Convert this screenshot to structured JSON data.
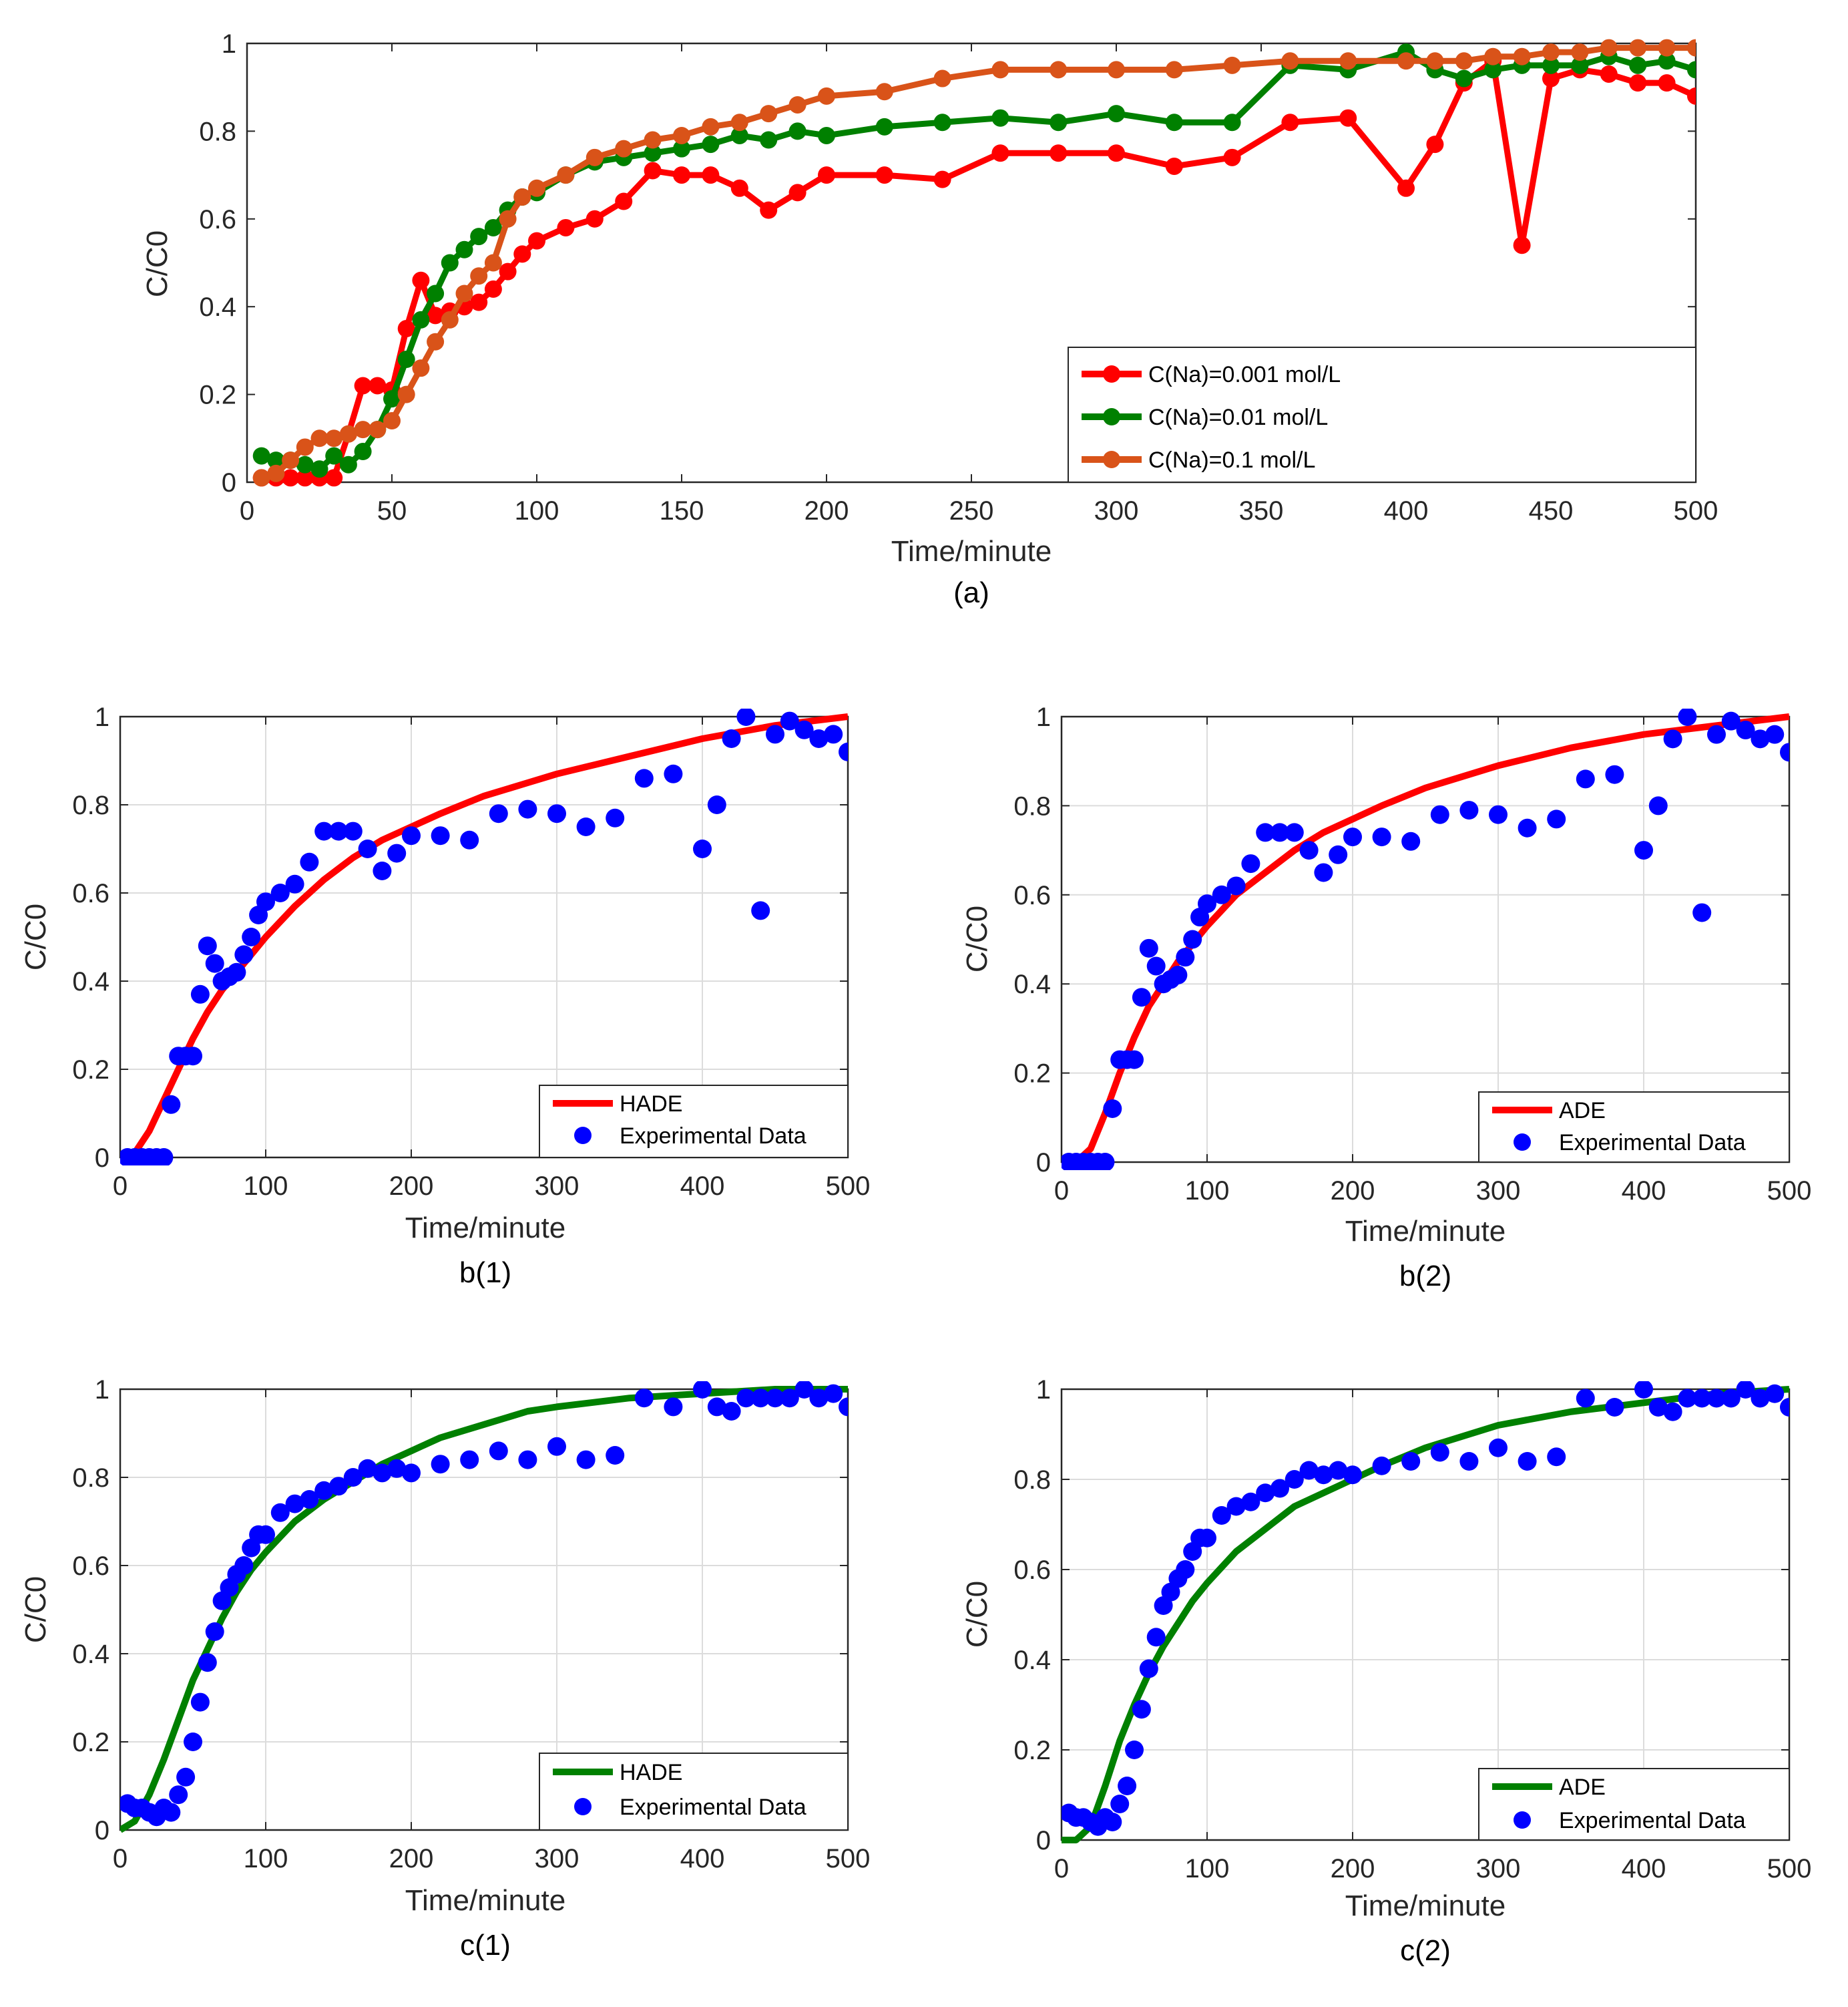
{
  "colors": {
    "red": "#ff0000",
    "green": "#008000",
    "orange": "#d95319",
    "blue": "#0000ff",
    "axis": "#262626",
    "grid": "#dcdcdc"
  },
  "chart_data": [
    {
      "id": "a",
      "type": "line",
      "caption": "(a)",
      "xlabel": "Time/minute",
      "ylabel": "C/C0",
      "xlim": [
        0,
        500
      ],
      "ylim": [
        0,
        1
      ],
      "xticks": [
        0,
        50,
        100,
        150,
        200,
        250,
        300,
        350,
        400,
        450,
        500
      ],
      "yticks": [
        0,
        0.2,
        0.4,
        0.6,
        0.8,
        1
      ],
      "ytick_labels": [
        "0",
        "0.2",
        "0.4",
        "0.6",
        "0.8",
        "1"
      ],
      "grid": false,
      "legend_position": "bottom-right",
      "series": [
        {
          "name": "C(Na)=0.001 mol/L",
          "color": "#ff0000",
          "marker": "circle",
          "x": [
            5,
            10,
            15,
            20,
            25,
            30,
            35,
            40,
            45,
            50,
            55,
            60,
            65,
            70,
            75,
            80,
            85,
            90,
            95,
            100,
            110,
            120,
            130,
            140,
            150,
            160,
            170,
            180,
            190,
            200,
            220,
            240,
            260,
            280,
            300,
            320,
            340,
            360,
            380,
            400,
            410,
            420,
            430,
            440,
            450,
            460,
            470,
            480,
            490,
            500
          ],
          "y": [
            0.01,
            0.01,
            0.01,
            0.01,
            0.01,
            0.01,
            0.11,
            0.22,
            0.22,
            0.21,
            0.35,
            0.46,
            0.38,
            0.39,
            0.4,
            0.41,
            0.44,
            0.48,
            0.52,
            0.55,
            0.58,
            0.6,
            0.64,
            0.71,
            0.7,
            0.7,
            0.67,
            0.62,
            0.66,
            0.7,
            0.7,
            0.69,
            0.75,
            0.75,
            0.75,
            0.72,
            0.74,
            0.82,
            0.83,
            0.67,
            0.77,
            0.91,
            0.96,
            0.54,
            0.92,
            0.94,
            0.93,
            0.91,
            0.91,
            0.88
          ]
        },
        {
          "name": "C(Na)=0.01 mol/L",
          "color": "#008000",
          "marker": "circle",
          "x": [
            5,
            10,
            15,
            20,
            25,
            30,
            35,
            40,
            45,
            50,
            55,
            60,
            65,
            70,
            75,
            80,
            85,
            90,
            95,
            100,
            110,
            120,
            130,
            140,
            150,
            160,
            170,
            180,
            190,
            200,
            220,
            240,
            260,
            280,
            300,
            320,
            340,
            360,
            380,
            400,
            410,
            420,
            430,
            440,
            450,
            460,
            470,
            480,
            490,
            500
          ],
          "y": [
            0.06,
            0.05,
            0.05,
            0.04,
            0.03,
            0.06,
            0.04,
            0.07,
            0.12,
            0.19,
            0.28,
            0.37,
            0.43,
            0.5,
            0.53,
            0.56,
            0.58,
            0.62,
            0.65,
            0.66,
            0.7,
            0.73,
            0.74,
            0.75,
            0.76,
            0.77,
            0.79,
            0.78,
            0.8,
            0.79,
            0.81,
            0.82,
            0.83,
            0.82,
            0.84,
            0.82,
            0.82,
            0.95,
            0.94,
            0.98,
            0.94,
            0.92,
            0.94,
            0.95,
            0.95,
            0.95,
            0.97,
            0.95,
            0.96,
            0.94
          ]
        },
        {
          "name": "C(Na)=0.1 mol/L",
          "color": "#d95319",
          "marker": "circle",
          "x": [
            5,
            10,
            15,
            20,
            25,
            30,
            35,
            40,
            45,
            50,
            55,
            60,
            65,
            70,
            75,
            80,
            85,
            90,
            95,
            100,
            110,
            120,
            130,
            140,
            150,
            160,
            170,
            180,
            190,
            200,
            220,
            240,
            260,
            280,
            300,
            320,
            340,
            360,
            380,
            400,
            410,
            420,
            430,
            440,
            450,
            460,
            470,
            480,
            490,
            500
          ],
          "y": [
            0.01,
            0.02,
            0.05,
            0.08,
            0.1,
            0.1,
            0.11,
            0.12,
            0.12,
            0.14,
            0.2,
            0.26,
            0.32,
            0.37,
            0.43,
            0.47,
            0.5,
            0.6,
            0.65,
            0.67,
            0.7,
            0.74,
            0.76,
            0.78,
            0.79,
            0.81,
            0.82,
            0.84,
            0.86,
            0.88,
            0.89,
            0.92,
            0.94,
            0.94,
            0.94,
            0.94,
            0.95,
            0.96,
            0.96,
            0.96,
            0.96,
            0.96,
            0.97,
            0.97,
            0.98,
            0.98,
            0.99,
            0.99,
            0.99,
            0.99
          ]
        }
      ]
    },
    {
      "id": "b1",
      "type": "scatter",
      "caption": "b(1)",
      "xlabel": "Time/minute",
      "ylabel": "C/C0",
      "xlim": [
        0,
        500
      ],
      "ylim": [
        0,
        1
      ],
      "xticks": [
        0,
        100,
        200,
        300,
        400,
        500
      ],
      "yticks": [
        0,
        0.2,
        0.4,
        0.6,
        0.8,
        1
      ],
      "ytick_labels": [
        "0",
        "0.2",
        "0.4",
        "0.6",
        "0.8",
        "1"
      ],
      "grid": true,
      "legend_position": "bottom-right",
      "model": {
        "name": "HADE",
        "color": "#ff0000",
        "x": [
          0,
          10,
          20,
          30,
          40,
          50,
          60,
          70,
          80,
          90,
          100,
          120,
          140,
          160,
          180,
          200,
          220,
          250,
          280,
          300,
          350,
          400,
          450,
          500
        ],
        "y": [
          0,
          0.01,
          0.06,
          0.13,
          0.2,
          0.27,
          0.33,
          0.38,
          0.42,
          0.46,
          0.5,
          0.57,
          0.63,
          0.68,
          0.72,
          0.75,
          0.78,
          0.82,
          0.85,
          0.87,
          0.91,
          0.95,
          0.98,
          1.0
        ]
      },
      "experimental": {
        "name": "Experimental Data",
        "color": "#0000ff",
        "x": [
          5,
          10,
          15,
          20,
          25,
          30,
          35,
          40,
          45,
          50,
          55,
          60,
          65,
          70,
          75,
          80,
          85,
          90,
          95,
          100,
          110,
          120,
          130,
          140,
          150,
          160,
          170,
          180,
          190,
          200,
          220,
          240,
          260,
          280,
          300,
          320,
          340,
          360,
          380,
          400,
          410,
          420,
          430,
          440,
          450,
          460,
          470,
          480,
          490,
          500
        ],
        "y": [
          0.0,
          0.0,
          0.0,
          0.0,
          0.0,
          0.0,
          0.12,
          0.23,
          0.23,
          0.23,
          0.37,
          0.48,
          0.44,
          0.4,
          0.41,
          0.42,
          0.46,
          0.5,
          0.55,
          0.58,
          0.6,
          0.62,
          0.67,
          0.74,
          0.74,
          0.74,
          0.7,
          0.65,
          0.69,
          0.73,
          0.73,
          0.72,
          0.78,
          0.79,
          0.78,
          0.75,
          0.77,
          0.86,
          0.87,
          0.7,
          0.8,
          0.95,
          1.0,
          0.56,
          0.96,
          0.99,
          0.97,
          0.95,
          0.96,
          0.92
        ]
      }
    },
    {
      "id": "b2",
      "type": "scatter",
      "caption": "b(2)",
      "xlabel": "Time/minute",
      "ylabel": "C/C0",
      "xlim": [
        0,
        500
      ],
      "ylim": [
        0,
        1
      ],
      "xticks": [
        0,
        100,
        200,
        300,
        400,
        500
      ],
      "yticks": [
        0,
        0.2,
        0.4,
        0.6,
        0.8,
        1
      ],
      "ytick_labels": [
        "0",
        "0.2",
        "0.4",
        "0.6",
        "0.8",
        "1"
      ],
      "grid": true,
      "legend_position": "bottom-right",
      "model": {
        "name": "ADE",
        "color": "#ff0000",
        "x": [
          0,
          10,
          20,
          30,
          40,
          50,
          60,
          70,
          80,
          90,
          100,
          120,
          140,
          160,
          180,
          200,
          220,
          250,
          280,
          300,
          350,
          400,
          450,
          500
        ],
        "y": [
          0,
          0.0,
          0.03,
          0.11,
          0.2,
          0.28,
          0.35,
          0.4,
          0.45,
          0.49,
          0.53,
          0.6,
          0.65,
          0.7,
          0.74,
          0.77,
          0.8,
          0.84,
          0.87,
          0.89,
          0.93,
          0.96,
          0.98,
          1.0
        ]
      },
      "experimental": {
        "name": "Experimental Data",
        "color": "#0000ff",
        "x": [
          5,
          10,
          15,
          20,
          25,
          30,
          35,
          40,
          45,
          50,
          55,
          60,
          65,
          70,
          75,
          80,
          85,
          90,
          95,
          100,
          110,
          120,
          130,
          140,
          150,
          160,
          170,
          180,
          190,
          200,
          220,
          240,
          260,
          280,
          300,
          320,
          340,
          360,
          380,
          400,
          410,
          420,
          430,
          440,
          450,
          460,
          470,
          480,
          490,
          500
        ],
        "y": [
          0.0,
          0.0,
          0.0,
          0.0,
          0.0,
          0.0,
          0.12,
          0.23,
          0.23,
          0.23,
          0.37,
          0.48,
          0.44,
          0.4,
          0.41,
          0.42,
          0.46,
          0.5,
          0.55,
          0.58,
          0.6,
          0.62,
          0.67,
          0.74,
          0.74,
          0.74,
          0.7,
          0.65,
          0.69,
          0.73,
          0.73,
          0.72,
          0.78,
          0.79,
          0.78,
          0.75,
          0.77,
          0.86,
          0.87,
          0.7,
          0.8,
          0.95,
          1.0,
          0.56,
          0.96,
          0.99,
          0.97,
          0.95,
          0.96,
          0.92
        ]
      }
    },
    {
      "id": "c1",
      "type": "scatter",
      "caption": "c(1)",
      "xlabel": "Time/minute",
      "ylabel": "C/C0",
      "xlim": [
        0,
        500
      ],
      "ylim": [
        0,
        1
      ],
      "xticks": [
        0,
        100,
        200,
        300,
        400,
        500
      ],
      "yticks": [
        0,
        0.2,
        0.4,
        0.6,
        0.8,
        1
      ],
      "ytick_labels": [
        "0",
        "0.2",
        "0.4",
        "0.6",
        "0.8",
        "1"
      ],
      "grid": true,
      "legend_position": "bottom-right",
      "model": {
        "name": "HADE",
        "color": "#008000",
        "x": [
          0,
          10,
          20,
          30,
          40,
          50,
          60,
          70,
          80,
          90,
          100,
          120,
          140,
          160,
          180,
          200,
          220,
          250,
          280,
          300,
          350,
          400,
          450,
          500
        ],
        "y": [
          0,
          0.02,
          0.08,
          0.16,
          0.25,
          0.34,
          0.41,
          0.48,
          0.54,
          0.59,
          0.63,
          0.7,
          0.75,
          0.79,
          0.83,
          0.86,
          0.89,
          0.92,
          0.95,
          0.96,
          0.98,
          0.99,
          1.0,
          1.0
        ]
      },
      "experimental": {
        "name": "Experimental Data",
        "color": "#0000ff",
        "x": [
          5,
          10,
          15,
          20,
          25,
          30,
          35,
          40,
          45,
          50,
          55,
          60,
          65,
          70,
          75,
          80,
          85,
          90,
          95,
          100,
          110,
          120,
          130,
          140,
          150,
          160,
          170,
          180,
          190,
          200,
          220,
          240,
          260,
          280,
          300,
          320,
          340,
          360,
          380,
          400,
          410,
          420,
          430,
          440,
          450,
          460,
          470,
          480,
          490,
          500
        ],
        "y": [
          0.06,
          0.05,
          0.05,
          0.04,
          0.03,
          0.05,
          0.04,
          0.08,
          0.12,
          0.2,
          0.29,
          0.38,
          0.45,
          0.52,
          0.55,
          0.58,
          0.6,
          0.64,
          0.67,
          0.67,
          0.72,
          0.74,
          0.75,
          0.77,
          0.78,
          0.8,
          0.82,
          0.81,
          0.82,
          0.81,
          0.83,
          0.84,
          0.86,
          0.84,
          0.87,
          0.84,
          0.85,
          0.98,
          0.96,
          1.0,
          0.96,
          0.95,
          0.98,
          0.98,
          0.98,
          0.98,
          1.0,
          0.98,
          0.99,
          0.96
        ]
      }
    },
    {
      "id": "c2",
      "type": "scatter",
      "caption": "c(2)",
      "xlabel": "Time/minute",
      "ylabel": "C/C0",
      "xlim": [
        0,
        500
      ],
      "ylim": [
        0,
        1
      ],
      "xticks": [
        0,
        100,
        200,
        300,
        400,
        500
      ],
      "yticks": [
        0,
        0.2,
        0.4,
        0.6,
        0.8,
        1
      ],
      "ytick_labels": [
        "0",
        "0.2",
        "0.4",
        "0.6",
        "0.8",
        "1"
      ],
      "grid": true,
      "legend_position": "bottom-right",
      "model": {
        "name": "ADE",
        "color": "#008000",
        "x": [
          0,
          10,
          20,
          30,
          40,
          50,
          60,
          70,
          80,
          90,
          100,
          120,
          140,
          160,
          180,
          200,
          220,
          250,
          280,
          300,
          350,
          400,
          450,
          500
        ],
        "y": [
          0,
          0.0,
          0.03,
          0.12,
          0.22,
          0.3,
          0.37,
          0.43,
          0.48,
          0.53,
          0.57,
          0.64,
          0.69,
          0.74,
          0.77,
          0.8,
          0.83,
          0.87,
          0.9,
          0.92,
          0.95,
          0.97,
          0.99,
          1.0
        ]
      },
      "experimental": {
        "name": "Experimental Data",
        "color": "#0000ff",
        "x": [
          5,
          10,
          15,
          20,
          25,
          30,
          35,
          40,
          45,
          50,
          55,
          60,
          65,
          70,
          75,
          80,
          85,
          90,
          95,
          100,
          110,
          120,
          130,
          140,
          150,
          160,
          170,
          180,
          190,
          200,
          220,
          240,
          260,
          280,
          300,
          320,
          340,
          360,
          380,
          400,
          410,
          420,
          430,
          440,
          450,
          460,
          470,
          480,
          490,
          500
        ],
        "y": [
          0.06,
          0.05,
          0.05,
          0.04,
          0.03,
          0.05,
          0.04,
          0.08,
          0.12,
          0.2,
          0.29,
          0.38,
          0.45,
          0.52,
          0.55,
          0.58,
          0.6,
          0.64,
          0.67,
          0.67,
          0.72,
          0.74,
          0.75,
          0.77,
          0.78,
          0.8,
          0.82,
          0.81,
          0.82,
          0.81,
          0.83,
          0.84,
          0.86,
          0.84,
          0.87,
          0.84,
          0.85,
          0.98,
          0.96,
          1.0,
          0.96,
          0.95,
          0.98,
          0.98,
          0.98,
          0.98,
          1.0,
          0.98,
          0.99,
          0.96
        ]
      }
    }
  ]
}
